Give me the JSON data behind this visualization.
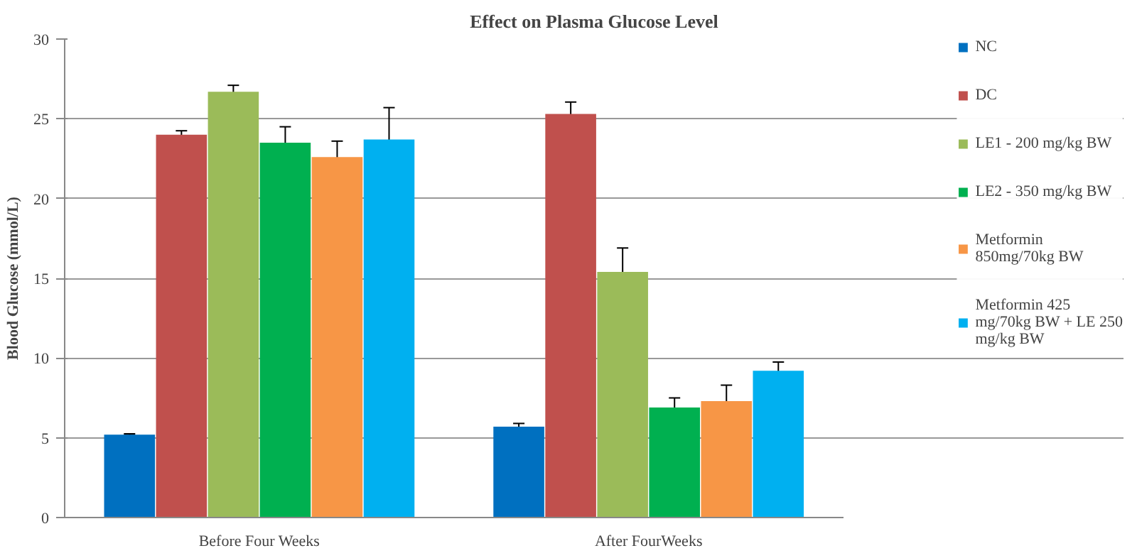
{
  "chart_data": {
    "type": "bar",
    "title": "Effect on Plasma Glucose Level",
    "ylabel": "Blood Glucose (mmol/L)",
    "categories": [
      "Before Four Weeks",
      "After FourWeeks"
    ],
    "ylim": [
      0,
      30
    ],
    "yticks": [
      0,
      5,
      10,
      15,
      20,
      25,
      30
    ],
    "grid": "y",
    "legend": "right",
    "series": [
      {
        "name": "NC",
        "color": "#0070c0",
        "values": [
          5.2,
          5.7
        ],
        "errors": [
          0.05,
          0.2
        ]
      },
      {
        "name": "DC",
        "color": "#c0504d",
        "values": [
          24.0,
          25.3
        ],
        "errors": [
          0.25,
          0.75
        ]
      },
      {
        "name": "LE1 - 200 mg/kg BW",
        "color": "#9bbb59",
        "values": [
          26.7,
          15.4
        ],
        "errors": [
          0.4,
          1.5
        ]
      },
      {
        "name": "LE2 - 350 mg/kg BW",
        "color": "#00b050",
        "values": [
          23.5,
          6.9
        ],
        "errors": [
          1.0,
          0.6
        ]
      },
      {
        "name": "Metformin 850mg/70kg BW",
        "color": "#f79646",
        "values": [
          22.6,
          7.3
        ],
        "errors": [
          1.0,
          1.0
        ]
      },
      {
        "name": "Metformin 425 mg/70kg BW + LE 250 mg/kg BW",
        "color": "#00b0f0",
        "values": [
          23.7,
          9.2
        ],
        "errors": [
          2.0,
          0.55
        ]
      }
    ]
  }
}
